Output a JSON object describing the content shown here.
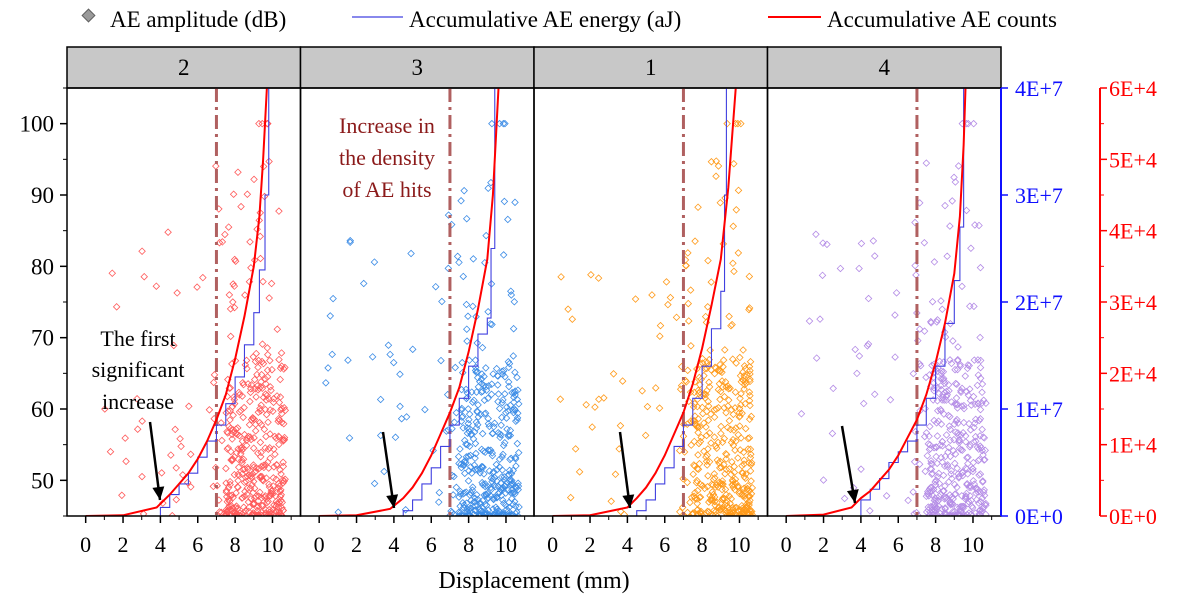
{
  "legend": {
    "amplitude": "AE amplitude (dB)",
    "energy": "Accumulative AE energy (aJ)",
    "counts": "Accumulative AE counts"
  },
  "xlabel": "Displacement (mm)",
  "annotations": {
    "first_increase": [
      "The first",
      "significant",
      "increase"
    ],
    "density": [
      "Increase in",
      "the density",
      "of AE hits"
    ]
  },
  "colors": {
    "energy_line": "#4040e0",
    "counts_line": "#ff0000",
    "dashdot_line": "#b06060",
    "panel_header": "#c8c8c8",
    "annotation_text": "#8b1a1a",
    "energy_axis": "#1010ff",
    "counts_axis": "#ff0000"
  },
  "chart_data": {
    "type": "scatter",
    "x_ticks": [
      "0",
      "2",
      "4",
      "6",
      "8",
      "10"
    ],
    "xlim": [
      -1,
      11.5
    ],
    "y_left": {
      "label": "",
      "ticks": [
        "50",
        "60",
        "70",
        "80",
        "90",
        "100"
      ],
      "ylim": [
        45,
        105
      ]
    },
    "y_right_energy": {
      "ticks": [
        "0E+0",
        "1E+7",
        "2E+7",
        "3E+7",
        "4E+7"
      ],
      "ylim": [
        0,
        40000000
      ]
    },
    "y_right_counts": {
      "ticks": [
        "0E+0",
        "1E+4",
        "2E+4",
        "3E+4",
        "4E+4",
        "5E+4",
        "6E+4"
      ],
      "ylim": [
        0,
        60000
      ]
    },
    "panels": [
      {
        "label": "2",
        "marker_color": "#ff5a5a",
        "dashdot_x": 7.0,
        "energy": [
          [
            3.8,
            0
          ],
          [
            4.0,
            800000
          ],
          [
            4.5,
            2000000
          ],
          [
            5.0,
            3000000
          ],
          [
            5.5,
            4000000
          ],
          [
            6.0,
            5500000
          ],
          [
            6.5,
            7000000
          ],
          [
            7.0,
            8500000
          ],
          [
            7.5,
            10500000
          ],
          [
            8.0,
            13000000
          ],
          [
            8.5,
            16000000
          ],
          [
            9.0,
            19000000
          ],
          [
            9.3,
            23000000
          ],
          [
            9.6,
            30000000
          ],
          [
            9.8,
            40000000
          ]
        ],
        "counts": [
          [
            0,
            0
          ],
          [
            2,
            100
          ],
          [
            3.8,
            1200
          ],
          [
            4.5,
            3000
          ],
          [
            5.0,
            4500
          ],
          [
            5.5,
            6000
          ],
          [
            6.0,
            8000
          ],
          [
            6.5,
            10500
          ],
          [
            7.0,
            13500
          ],
          [
            7.5,
            17000
          ],
          [
            8.0,
            22000
          ],
          [
            8.5,
            28000
          ],
          [
            9.0,
            35000
          ],
          [
            9.3,
            42000
          ],
          [
            9.5,
            50000
          ],
          [
            9.7,
            60000
          ]
        ]
      },
      {
        "label": "3",
        "marker_color": "#3c8ce6",
        "dashdot_x": 7.0,
        "energy": [
          [
            4.0,
            0
          ],
          [
            4.5,
            500000
          ],
          [
            5.0,
            1500000
          ],
          [
            5.5,
            3000000
          ],
          [
            6.0,
            4500000
          ],
          [
            6.5,
            6500000
          ],
          [
            7.0,
            8500000
          ],
          [
            7.5,
            11000000
          ],
          [
            8.0,
            14000000
          ],
          [
            8.5,
            17000000
          ],
          [
            9.0,
            18500000
          ],
          [
            9.2,
            25000000
          ],
          [
            9.4,
            40000000
          ]
        ],
        "counts": [
          [
            0,
            0
          ],
          [
            2,
            100
          ],
          [
            3.8,
            1000
          ],
          [
            4.5,
            2500
          ],
          [
            5.0,
            4000
          ],
          [
            5.5,
            6000
          ],
          [
            6.0,
            8500
          ],
          [
            6.5,
            11500
          ],
          [
            7.0,
            14500
          ],
          [
            7.5,
            18000
          ],
          [
            8.0,
            23000
          ],
          [
            8.5,
            29000
          ],
          [
            9.0,
            36000
          ],
          [
            9.3,
            45000
          ],
          [
            9.6,
            60000
          ]
        ]
      },
      {
        "label": "1",
        "marker_color": "#ff9a1a",
        "dashdot_x": 7.0,
        "energy": [
          [
            4.0,
            0
          ],
          [
            4.5,
            500000
          ],
          [
            5.0,
            1500000
          ],
          [
            5.5,
            3000000
          ],
          [
            6.0,
            4500000
          ],
          [
            6.5,
            6500000
          ],
          [
            7.0,
            8500000
          ],
          [
            7.5,
            11000000
          ],
          [
            8.0,
            14000000
          ],
          [
            8.5,
            17500000
          ],
          [
            9.0,
            21000000
          ],
          [
            9.2,
            30000000
          ],
          [
            9.3,
            40000000
          ]
        ],
        "counts": [
          [
            0,
            0
          ],
          [
            2,
            100
          ],
          [
            4.0,
            1200
          ],
          [
            4.5,
            2500
          ],
          [
            5.0,
            4000
          ],
          [
            5.5,
            6000
          ],
          [
            6.0,
            8500
          ],
          [
            6.5,
            11500
          ],
          [
            7.0,
            14500
          ],
          [
            7.5,
            18500
          ],
          [
            8.0,
            23500
          ],
          [
            8.5,
            29500
          ],
          [
            9.0,
            36000
          ],
          [
            9.4,
            46000
          ],
          [
            9.8,
            60000
          ]
        ]
      },
      {
        "label": "4",
        "marker_color": "#b48ce6",
        "dashdot_x": 7.0,
        "energy": [
          [
            3.5,
            0
          ],
          [
            4.0,
            1500000
          ],
          [
            4.5,
            2500000
          ],
          [
            5.0,
            3500000
          ],
          [
            5.5,
            5000000
          ],
          [
            6.0,
            6000000
          ],
          [
            6.5,
            7000000
          ],
          [
            7.0,
            8500000
          ],
          [
            7.5,
            11000000
          ],
          [
            8.0,
            14000000
          ],
          [
            8.5,
            18000000
          ],
          [
            9.0,
            22000000
          ],
          [
            9.3,
            27000000
          ],
          [
            9.5,
            40000000
          ]
        ],
        "counts": [
          [
            0,
            0
          ],
          [
            2,
            200
          ],
          [
            3.5,
            1200
          ],
          [
            4.0,
            2500
          ],
          [
            4.5,
            3500
          ],
          [
            5.0,
            5000
          ],
          [
            5.5,
            6500
          ],
          [
            6.0,
            8500
          ],
          [
            6.5,
            11000
          ],
          [
            7.0,
            13500
          ],
          [
            7.5,
            17000
          ],
          [
            8.0,
            21500
          ],
          [
            8.5,
            27000
          ],
          [
            9.0,
            34000
          ],
          [
            9.3,
            42000
          ],
          [
            9.5,
            52000
          ],
          [
            9.6,
            60000
          ]
        ]
      }
    ]
  }
}
